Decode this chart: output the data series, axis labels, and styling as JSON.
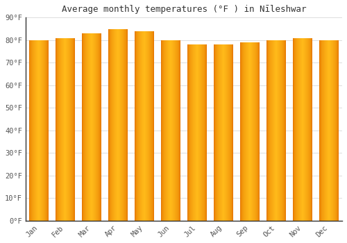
{
  "title": "Average monthly temperatures (°F ) in Nīleshwar",
  "months": [
    "Jan",
    "Feb",
    "Mar",
    "Apr",
    "May",
    "Jun",
    "Jul",
    "Aug",
    "Sep",
    "Oct",
    "Nov",
    "Dec"
  ],
  "values": [
    80,
    81,
    83,
    85,
    84,
    80,
    78,
    78,
    79,
    80,
    81,
    80
  ],
  "bar_edge_color": "#E07800",
  "bar_center_color": "#FFB800",
  "background_color": "#FFFFFF",
  "grid_color": "#DDDDDD",
  "ylim": [
    0,
    90
  ],
  "ytick_step": 10,
  "title_fontsize": 9,
  "tick_fontsize": 7.5,
  "font_family": "monospace",
  "tick_color": "#555555",
  "spine_color": "#333333"
}
